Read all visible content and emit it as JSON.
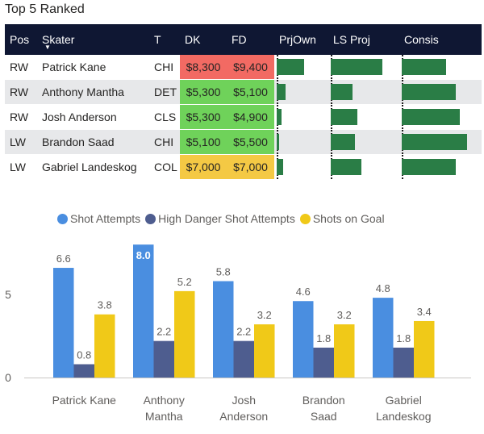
{
  "title": "Top 5 Ranked",
  "colors": {
    "header_bg": "#0f1733",
    "bar_green": "#2a7d46",
    "shot_attempts": "#4a8ee0",
    "high_danger": "#4e5d8f",
    "shots_on_goal": "#f0c918",
    "price_red": "#f26a63",
    "price_green": "#6fd25a",
    "price_gold": "#f4c944"
  },
  "table": {
    "columns": [
      "Pos",
      "Skater",
      "T",
      "DK",
      "FD",
      "PrjOwn",
      "LS Proj",
      "Consis"
    ],
    "sort_icon": "sort-descending-icon",
    "rows": [
      {
        "pos": "RW",
        "skater": "Patrick Kane",
        "team": "CHI",
        "dk": "$8,300",
        "fd": "$9,400",
        "dk_color": "#f26a63",
        "fd_color": "#f26a63",
        "prj_own": 0.61,
        "ls_proj": 0.84,
        "consis": 0.66
      },
      {
        "pos": "RW",
        "skater": "Anthony Mantha",
        "team": "DET",
        "dk": "$5,300",
        "fd": "$5,100",
        "dk_color": "#6fd25a",
        "fd_color": "#6fd25a",
        "prj_own": 0.19,
        "ls_proj": 0.36,
        "consis": 0.8
      },
      {
        "pos": "RW",
        "skater": "Josh Anderson",
        "team": "CLS",
        "dk": "$5,300",
        "fd": "$4,900",
        "dk_color": "#6fd25a",
        "fd_color": "#6fd25a",
        "prj_own": 0.11,
        "ls_proj": 0.43,
        "consis": 0.86
      },
      {
        "pos": "LW",
        "skater": "Brandon Saad",
        "team": "CHI",
        "dk": "$5,100",
        "fd": "$5,500",
        "dk_color": "#6fd25a",
        "fd_color": "#6fd25a",
        "prj_own": 0.06,
        "ls_proj": 0.39,
        "consis": 0.97
      },
      {
        "pos": "LW",
        "skater": "Gabriel Landeskog",
        "team": "COL",
        "dk": "$7,000",
        "fd": "$7,000",
        "dk_color": "#f4c944",
        "fd_color": "#f4c944",
        "prj_own": 0.15,
        "ls_proj": 0.5,
        "consis": 0.8
      }
    ]
  },
  "chart_data": {
    "type": "bar",
    "title": "",
    "xlabel": "",
    "ylabel": "",
    "ylim": [
      0,
      8.5
    ],
    "y_ticks": [
      0,
      5
    ],
    "legend_position": "top",
    "categories": [
      [
        "Patrick Kane"
      ],
      [
        "Anthony",
        "Mantha"
      ],
      [
        "Josh",
        "Anderson"
      ],
      [
        "Brandon",
        "Saad"
      ],
      [
        "Gabriel",
        "Landeskog"
      ]
    ],
    "series": [
      {
        "name": "Shot Attempts",
        "color": "#4a8ee0",
        "values": [
          6.6,
          8.0,
          5.8,
          4.6,
          4.8
        ]
      },
      {
        "name": "High Danger Shot Attempts",
        "color": "#4e5d8f",
        "values": [
          0.8,
          2.2,
          2.2,
          1.8,
          1.8
        ]
      },
      {
        "name": "Shots on Goal",
        "color": "#f0c918",
        "values": [
          3.8,
          5.2,
          3.2,
          3.2,
          3.4
        ]
      }
    ]
  }
}
